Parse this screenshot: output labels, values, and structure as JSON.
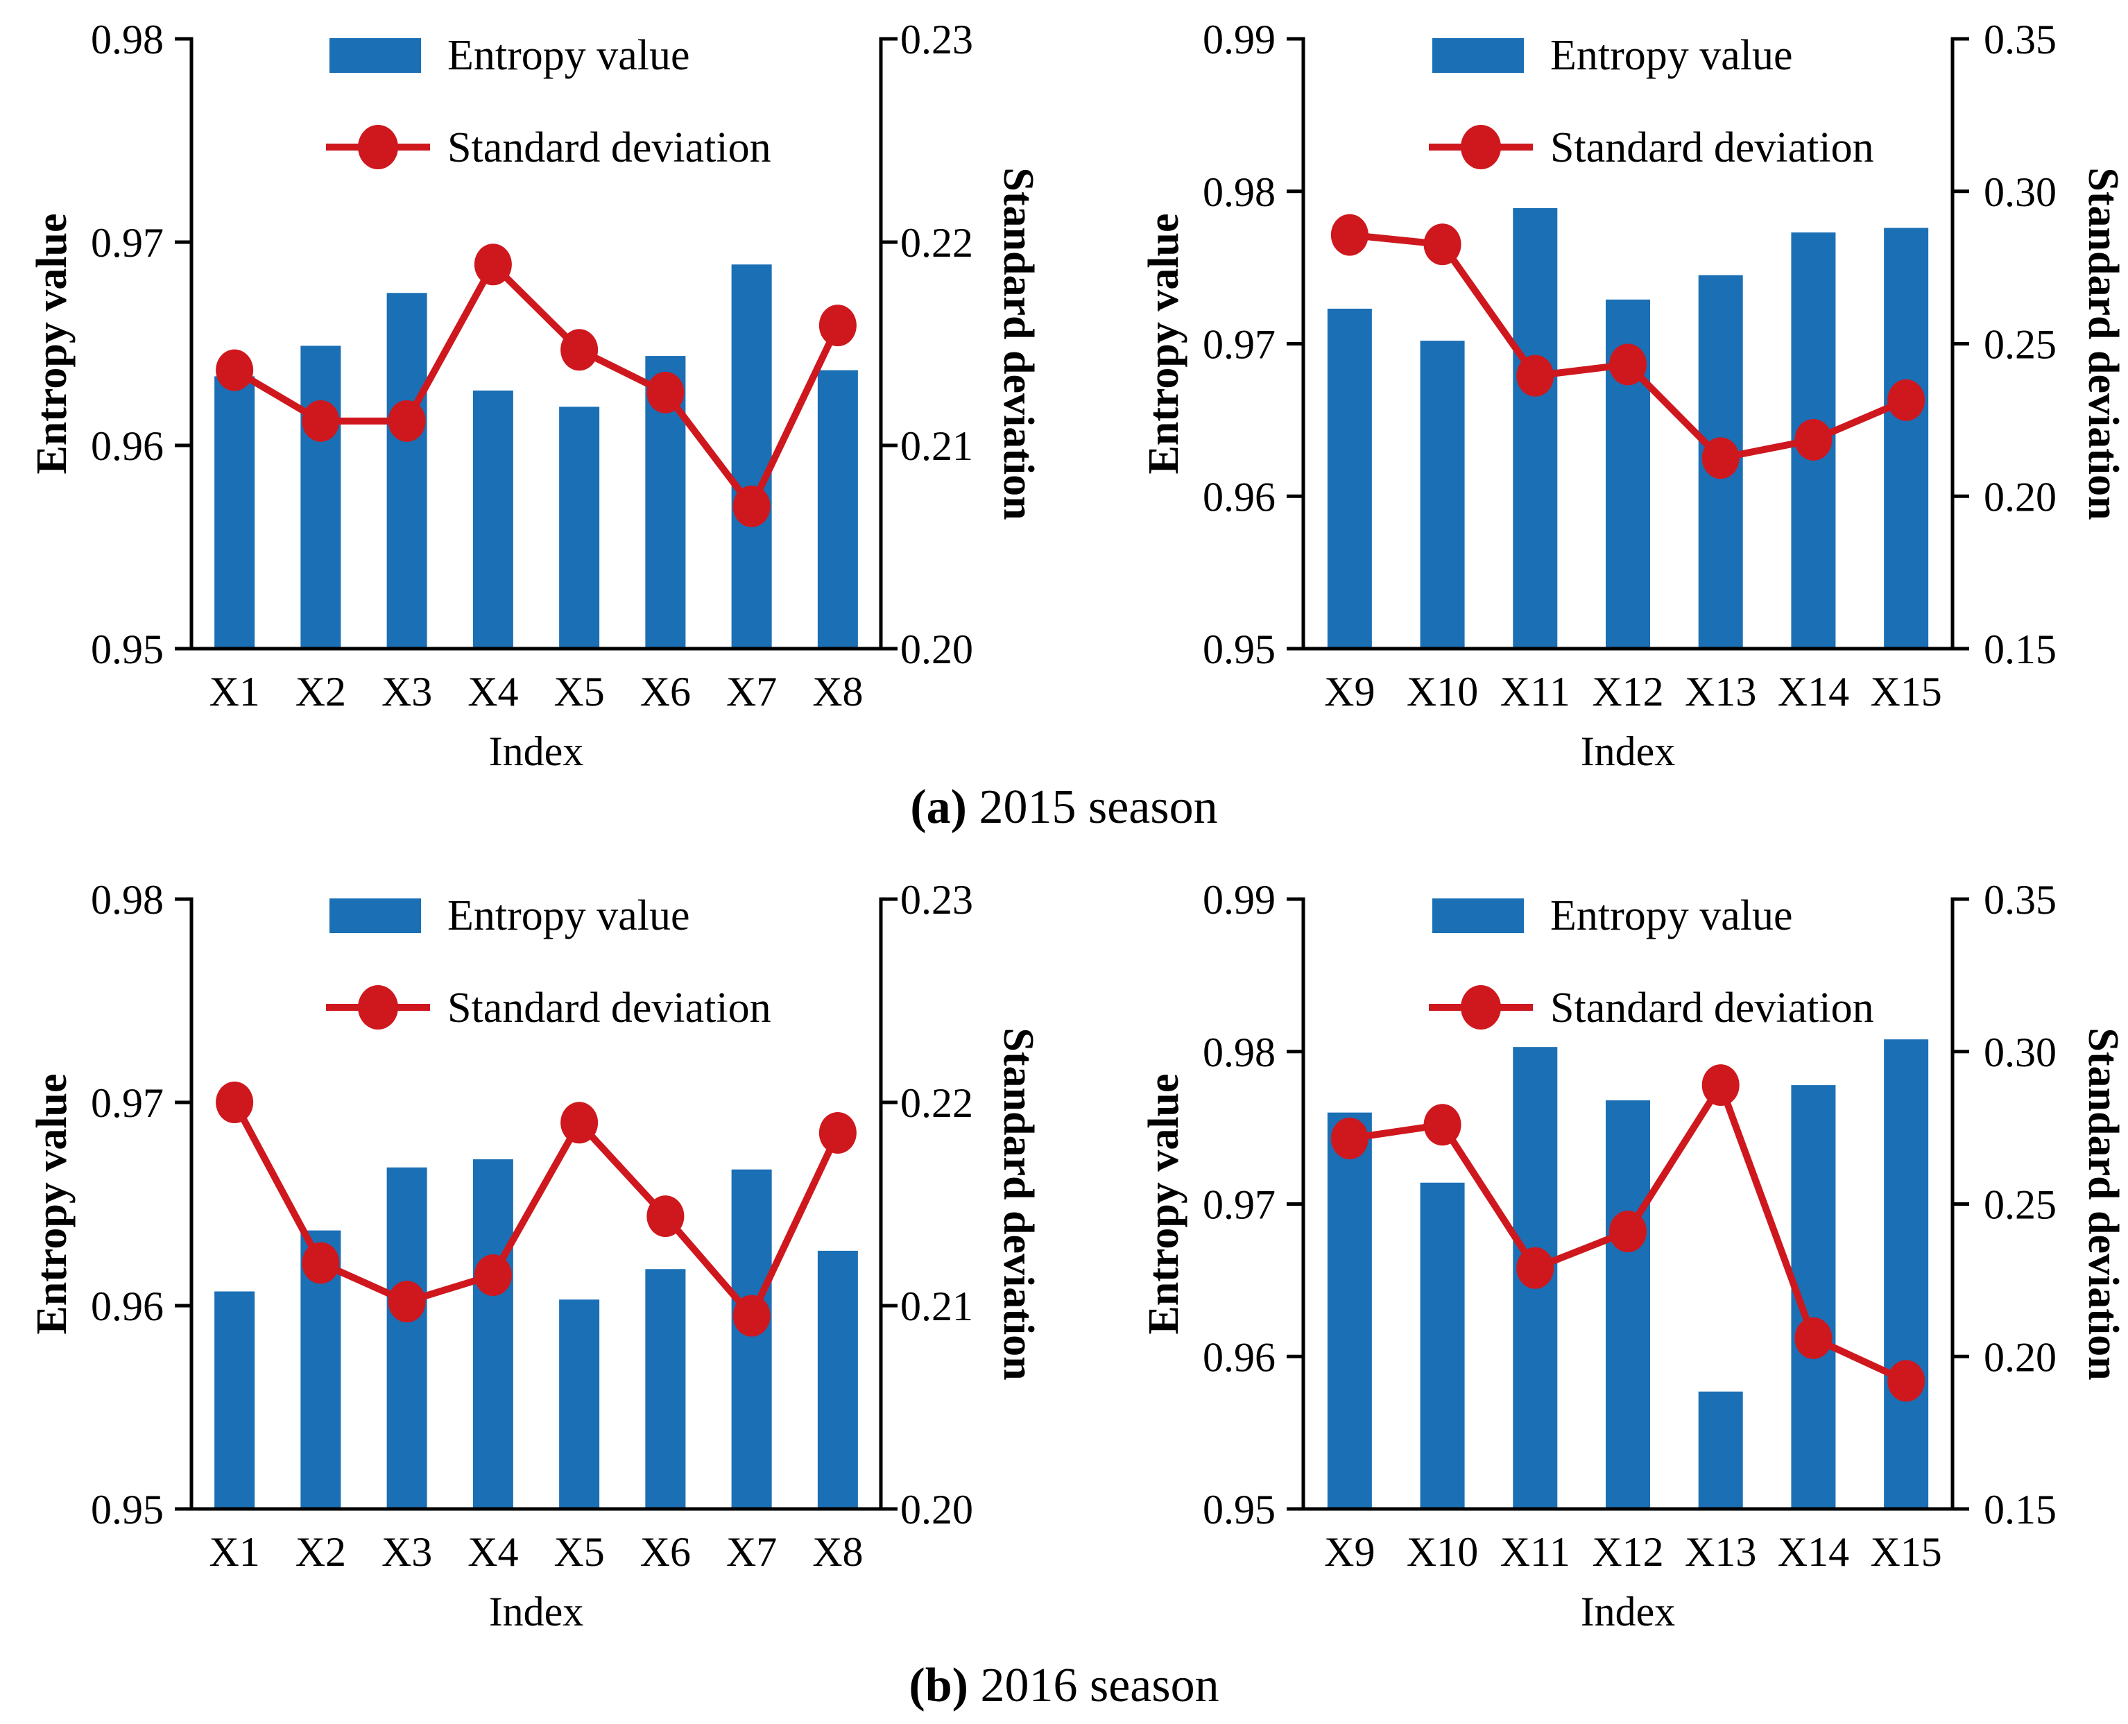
{
  "colors": {
    "bar": "#1B6FB5",
    "line": "#CE181E",
    "axis": "#000000",
    "background": "#FFFFFF"
  },
  "captions": {
    "a": {
      "label": "(a)",
      "text": " 2015 season"
    },
    "b": {
      "label": "(b)",
      "text": " 2016 season"
    }
  },
  "chart_data": [
    {
      "id": "2015-x1-x8",
      "type": "bar+line",
      "season": "2015",
      "categories": [
        "X1",
        "X2",
        "X3",
        "X4",
        "X5",
        "X6",
        "X7",
        "X8"
      ],
      "series": [
        {
          "name": "Entropy value",
          "type": "bar",
          "axis": "left",
          "values": [
            0.9634,
            0.9649,
            0.9675,
            0.9627,
            0.9619,
            0.9644,
            0.9689,
            0.9637
          ]
        },
        {
          "name": "Standard deviation",
          "type": "line",
          "axis": "right",
          "values": [
            0.2137,
            0.2112,
            0.2112,
            0.2189,
            0.2147,
            0.2126,
            0.207,
            0.2159
          ]
        }
      ],
      "left_axis": {
        "label": "Entropy value",
        "min": 0.95,
        "max": 0.98,
        "step": 0.01,
        "ticks": [
          0.95,
          0.96,
          0.97,
          0.98
        ]
      },
      "right_axis": {
        "label": "Standard deviation",
        "min": 0.2,
        "max": 0.23,
        "step": 0.01,
        "ticks": [
          0.2,
          0.21,
          0.22,
          0.23
        ]
      },
      "xlabel": "Index",
      "grid": false,
      "legend_position": "top-inside"
    },
    {
      "id": "2015-x9-x15",
      "type": "bar+line",
      "season": "2015",
      "categories": [
        "X9",
        "X10",
        "X11",
        "X12",
        "X13",
        "X14",
        "X15"
      ],
      "series": [
        {
          "name": "Entropy value",
          "type": "bar",
          "axis": "left",
          "values": [
            0.9723,
            0.9702,
            0.9789,
            0.9729,
            0.9745,
            0.9773,
            0.9776
          ]
        },
        {
          "name": "Standard deviation",
          "type": "line",
          "axis": "right",
          "values": [
            0.2857,
            0.2826,
            0.2395,
            0.2432,
            0.2125,
            0.2185,
            0.2315
          ]
        }
      ],
      "left_axis": {
        "label": "Entropy value",
        "min": 0.95,
        "max": 0.99,
        "step": 0.01,
        "ticks": [
          0.95,
          0.96,
          0.97,
          0.98,
          0.99
        ]
      },
      "right_axis": {
        "label": "Standard deviation",
        "min": 0.15,
        "max": 0.35,
        "step": 0.05,
        "ticks": [
          0.15,
          0.2,
          0.25,
          0.3,
          0.35
        ]
      },
      "xlabel": "Index",
      "grid": false,
      "legend_position": "top-inside"
    },
    {
      "id": "2016-x1-x8",
      "type": "bar+line",
      "season": "2016",
      "categories": [
        "X1",
        "X2",
        "X3",
        "X4",
        "X5",
        "X6",
        "X7",
        "X8"
      ],
      "series": [
        {
          "name": "Entropy value",
          "type": "bar",
          "axis": "left",
          "values": [
            0.9607,
            0.9637,
            0.9668,
            0.9672,
            0.9603,
            0.9618,
            0.9667,
            0.9627
          ]
        },
        {
          "name": "Standard deviation",
          "type": "line",
          "axis": "right",
          "values": [
            0.22,
            0.2121,
            0.2102,
            0.2115,
            0.219,
            0.2144,
            0.2095,
            0.2185
          ]
        }
      ],
      "left_axis": {
        "label": "Entropy value",
        "min": 0.95,
        "max": 0.98,
        "step": 0.01,
        "ticks": [
          0.95,
          0.96,
          0.97,
          0.98
        ]
      },
      "right_axis": {
        "label": "Standard deviation",
        "min": 0.2,
        "max": 0.23,
        "step": 0.01,
        "ticks": [
          0.2,
          0.21,
          0.22,
          0.23
        ]
      },
      "xlabel": "Index",
      "grid": false,
      "legend_position": "top-inside"
    },
    {
      "id": "2016-x9-x15",
      "type": "bar+line",
      "season": "2016",
      "categories": [
        "X9",
        "X10",
        "X11",
        "X12",
        "X13",
        "X14",
        "X15"
      ],
      "series": [
        {
          "name": "Entropy value",
          "type": "bar",
          "axis": "left",
          "values": [
            0.976,
            0.9714,
            0.9803,
            0.9768,
            0.9577,
            0.9778,
            0.9808
          ]
        },
        {
          "name": "Standard deviation",
          "type": "line",
          "axis": "right",
          "values": [
            0.2715,
            0.276,
            0.229,
            0.241,
            0.289,
            0.206,
            0.192
          ]
        }
      ],
      "left_axis": {
        "label": "Entropy value",
        "min": 0.95,
        "max": 0.99,
        "step": 0.01,
        "ticks": [
          0.95,
          0.96,
          0.97,
          0.98,
          0.99
        ]
      },
      "right_axis": {
        "label": "Standard deviation",
        "min": 0.15,
        "max": 0.35,
        "step": 0.05,
        "ticks": [
          0.15,
          0.2,
          0.25,
          0.3,
          0.35
        ]
      },
      "xlabel": "Index",
      "grid": false,
      "legend_position": "top-inside"
    }
  ]
}
